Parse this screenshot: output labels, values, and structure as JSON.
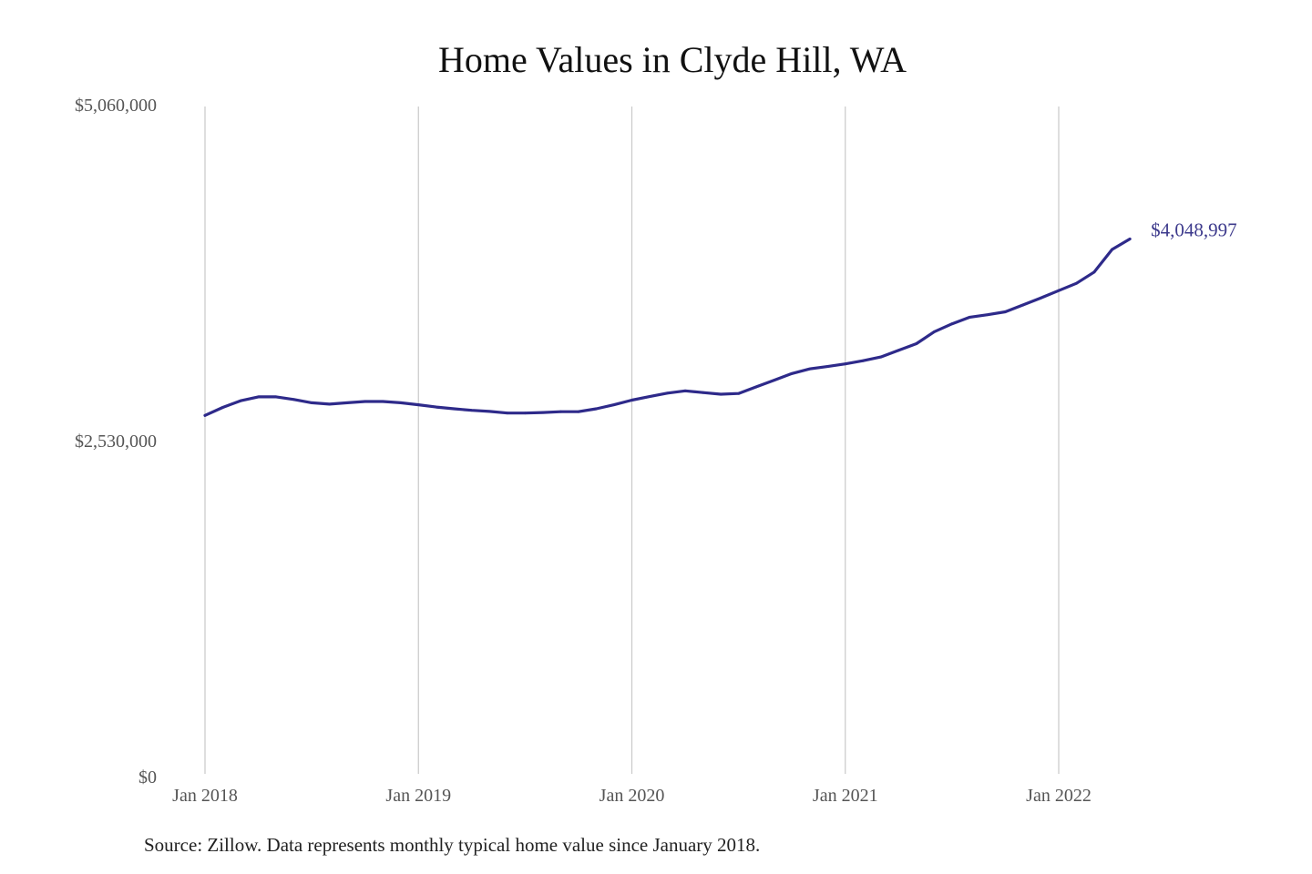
{
  "chart_data": {
    "type": "line",
    "title": "Home Values in Clyde Hill, WA",
    "xlabel": "",
    "ylabel": "",
    "ylim": [
      0,
      5060000
    ],
    "y_ticks": [
      {
        "value": 0,
        "label": "$0"
      },
      {
        "value": 2530000,
        "label": "$2,530,000"
      },
      {
        "value": 5060000,
        "label": "$5,060,000"
      }
    ],
    "x_ticks": [
      {
        "date": "2018-01",
        "label": "Jan 2018"
      },
      {
        "date": "2019-01",
        "label": "Jan 2019"
      },
      {
        "date": "2020-01",
        "label": "Jan 2020"
      },
      {
        "date": "2021-01",
        "label": "Jan 2021"
      },
      {
        "date": "2022-01",
        "label": "Jan 2022"
      }
    ],
    "grid": {
      "vertical": true,
      "horizontal": false
    },
    "series": [
      {
        "color": "#2e2a8a",
        "x": [
          "2018-01",
          "2018-02",
          "2018-03",
          "2018-04",
          "2018-05",
          "2018-06",
          "2018-07",
          "2018-08",
          "2018-09",
          "2018-10",
          "2018-11",
          "2018-12",
          "2019-01",
          "2019-02",
          "2019-03",
          "2019-04",
          "2019-05",
          "2019-06",
          "2019-07",
          "2019-08",
          "2019-09",
          "2019-10",
          "2019-11",
          "2019-12",
          "2020-01",
          "2020-02",
          "2020-03",
          "2020-04",
          "2020-05",
          "2020-06",
          "2020-07",
          "2020-08",
          "2020-09",
          "2020-10",
          "2020-11",
          "2020-12",
          "2021-01",
          "2021-02",
          "2021-03",
          "2021-04",
          "2021-05",
          "2021-06",
          "2021-07",
          "2021-08",
          "2021-09",
          "2021-10",
          "2021-11",
          "2021-12",
          "2022-01",
          "2022-02",
          "2022-03",
          "2022-04",
          "2022-05"
        ],
        "values": [
          2720000,
          2780000,
          2830000,
          2860000,
          2860000,
          2840000,
          2815000,
          2805000,
          2815000,
          2825000,
          2825000,
          2815000,
          2800000,
          2783000,
          2770000,
          2758000,
          2750000,
          2738000,
          2738000,
          2742000,
          2748000,
          2748000,
          2770000,
          2800000,
          2835000,
          2862000,
          2888000,
          2905000,
          2892000,
          2880000,
          2885000,
          2935000,
          2985000,
          3035000,
          3070000,
          3088000,
          3108000,
          3132000,
          3160000,
          3210000,
          3260000,
          3350000,
          3410000,
          3460000,
          3478000,
          3500000,
          3552000,
          3605000,
          3660000,
          3715000,
          3800000,
          3970000,
          4048997
        ]
      }
    ],
    "end_label": "$4,048,997"
  },
  "source_note": "Source: Zillow. Data represents monthly typical home value since January 2018."
}
